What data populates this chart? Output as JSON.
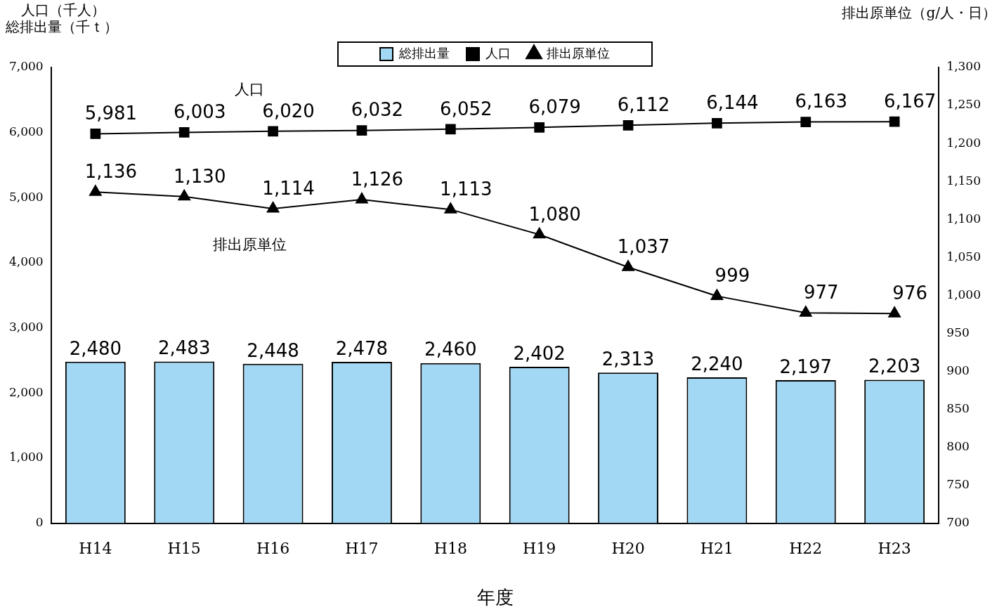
{
  "chart_data": {
    "type": "bar",
    "xlabel": "年度",
    "ylabel": "人口（千人）総排出量（千ｔ）",
    "y2label": "排出原単位（g/人・日）",
    "categories": [
      "H14",
      "H15",
      "H16",
      "H17",
      "H18",
      "H19",
      "H20",
      "H21",
      "H22",
      "H23"
    ],
    "series": [
      {
        "name": "総排出量",
        "color": "#a3d8f5",
        "values": [
          2480,
          2483,
          2448,
          2478,
          2460,
          2402,
          2313,
          2240,
          2197,
          2203
        ],
        "value_labels": [
          "2,480",
          "2,483",
          "2,448",
          "2,478",
          "2,460",
          "2,402",
          "2,313",
          "2,240",
          "2,197",
          "2,203"
        ]
      },
      {
        "name": "人口",
        "type": "line",
        "color": "#000000",
        "marker": "square",
        "values": [
          5981,
          6003,
          6020,
          6032,
          6052,
          6079,
          6112,
          6144,
          6163,
          6167
        ],
        "value_labels": [
          "5,981",
          "6,003",
          "6,020",
          "6,032",
          "6,052",
          "6,079",
          "6,112",
          "6,144",
          "6,163",
          "6,167"
        ]
      },
      {
        "name": "排出原単位",
        "type": "line",
        "color": "#000000",
        "marker": "triangle",
        "axis": "y2",
        "values": [
          1136,
          1130,
          1114,
          1126,
          1113,
          1080,
          1037,
          999,
          977,
          976
        ],
        "value_labels": [
          "1,136",
          "1,130",
          "1,114",
          "1,126",
          "1,113",
          "1,080",
          "1,037",
          "999",
          "977",
          "976"
        ]
      }
    ],
    "ylim": [
      0,
      7000
    ],
    "yticks": [
      0,
      {
        "value": 1000,
        "label": "1,000"
      },
      {
        "value": 2000,
        "label": "2,000"
      },
      {
        "value": 3000,
        "label": "3,000"
      },
      {
        "value": 4000,
        "label": "4,000"
      },
      {
        "value": 5000,
        "label": "5,000"
      },
      {
        "value": 6000,
        "label": "6,000"
      },
      {
        "value": 7000,
        "label": "7,000"
      }
    ],
    "y2lim": [
      700,
      1300
    ],
    "y2ticks": [
      700,
      750,
      800,
      850,
      900,
      950,
      {
        "value": 1000,
        "label": "1,000"
      },
      {
        "value": 1050,
        "label": "1,050"
      },
      {
        "value": 1100,
        "label": "1,100"
      },
      {
        "value": 1150,
        "label": "1,150"
      },
      {
        "value": 1200,
        "label": "1,200"
      },
      {
        "value": 1250,
        "label": "1,250"
      },
      {
        "value": 1300,
        "label": "1,300"
      }
    ],
    "annotations": [
      "人口",
      "排出原単位"
    ],
    "legend": "top",
    "grid": false
  }
}
